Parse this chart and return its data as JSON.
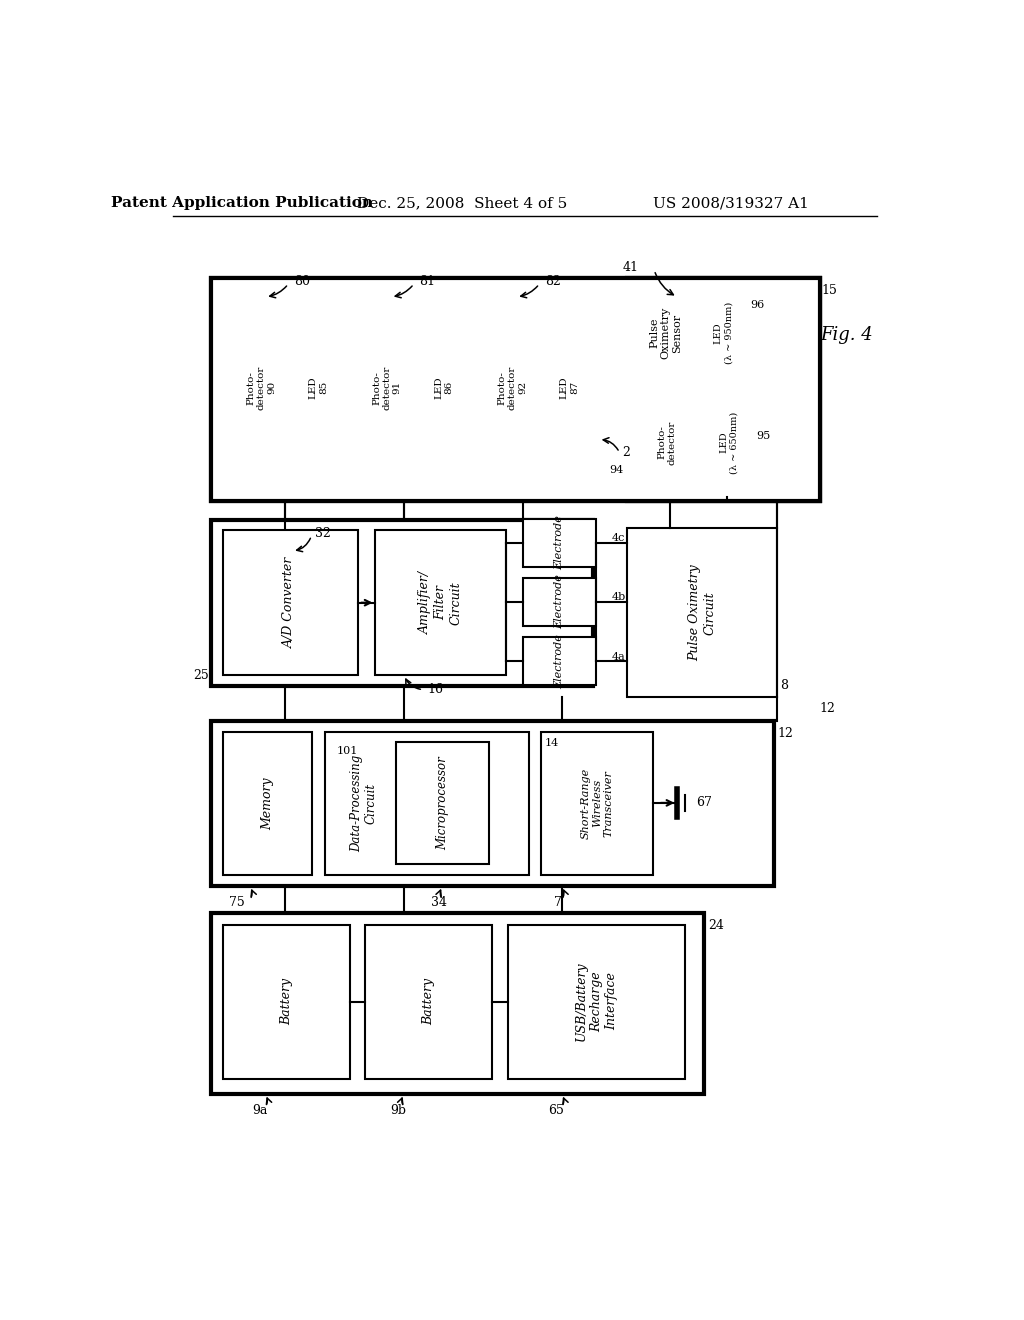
{
  "bg_color": "#ffffff",
  "title_left": "Patent Application Publication",
  "title_center": "Dec. 25, 2008  Sheet 4 of 5",
  "title_right": "US 2008/319327 A1"
}
